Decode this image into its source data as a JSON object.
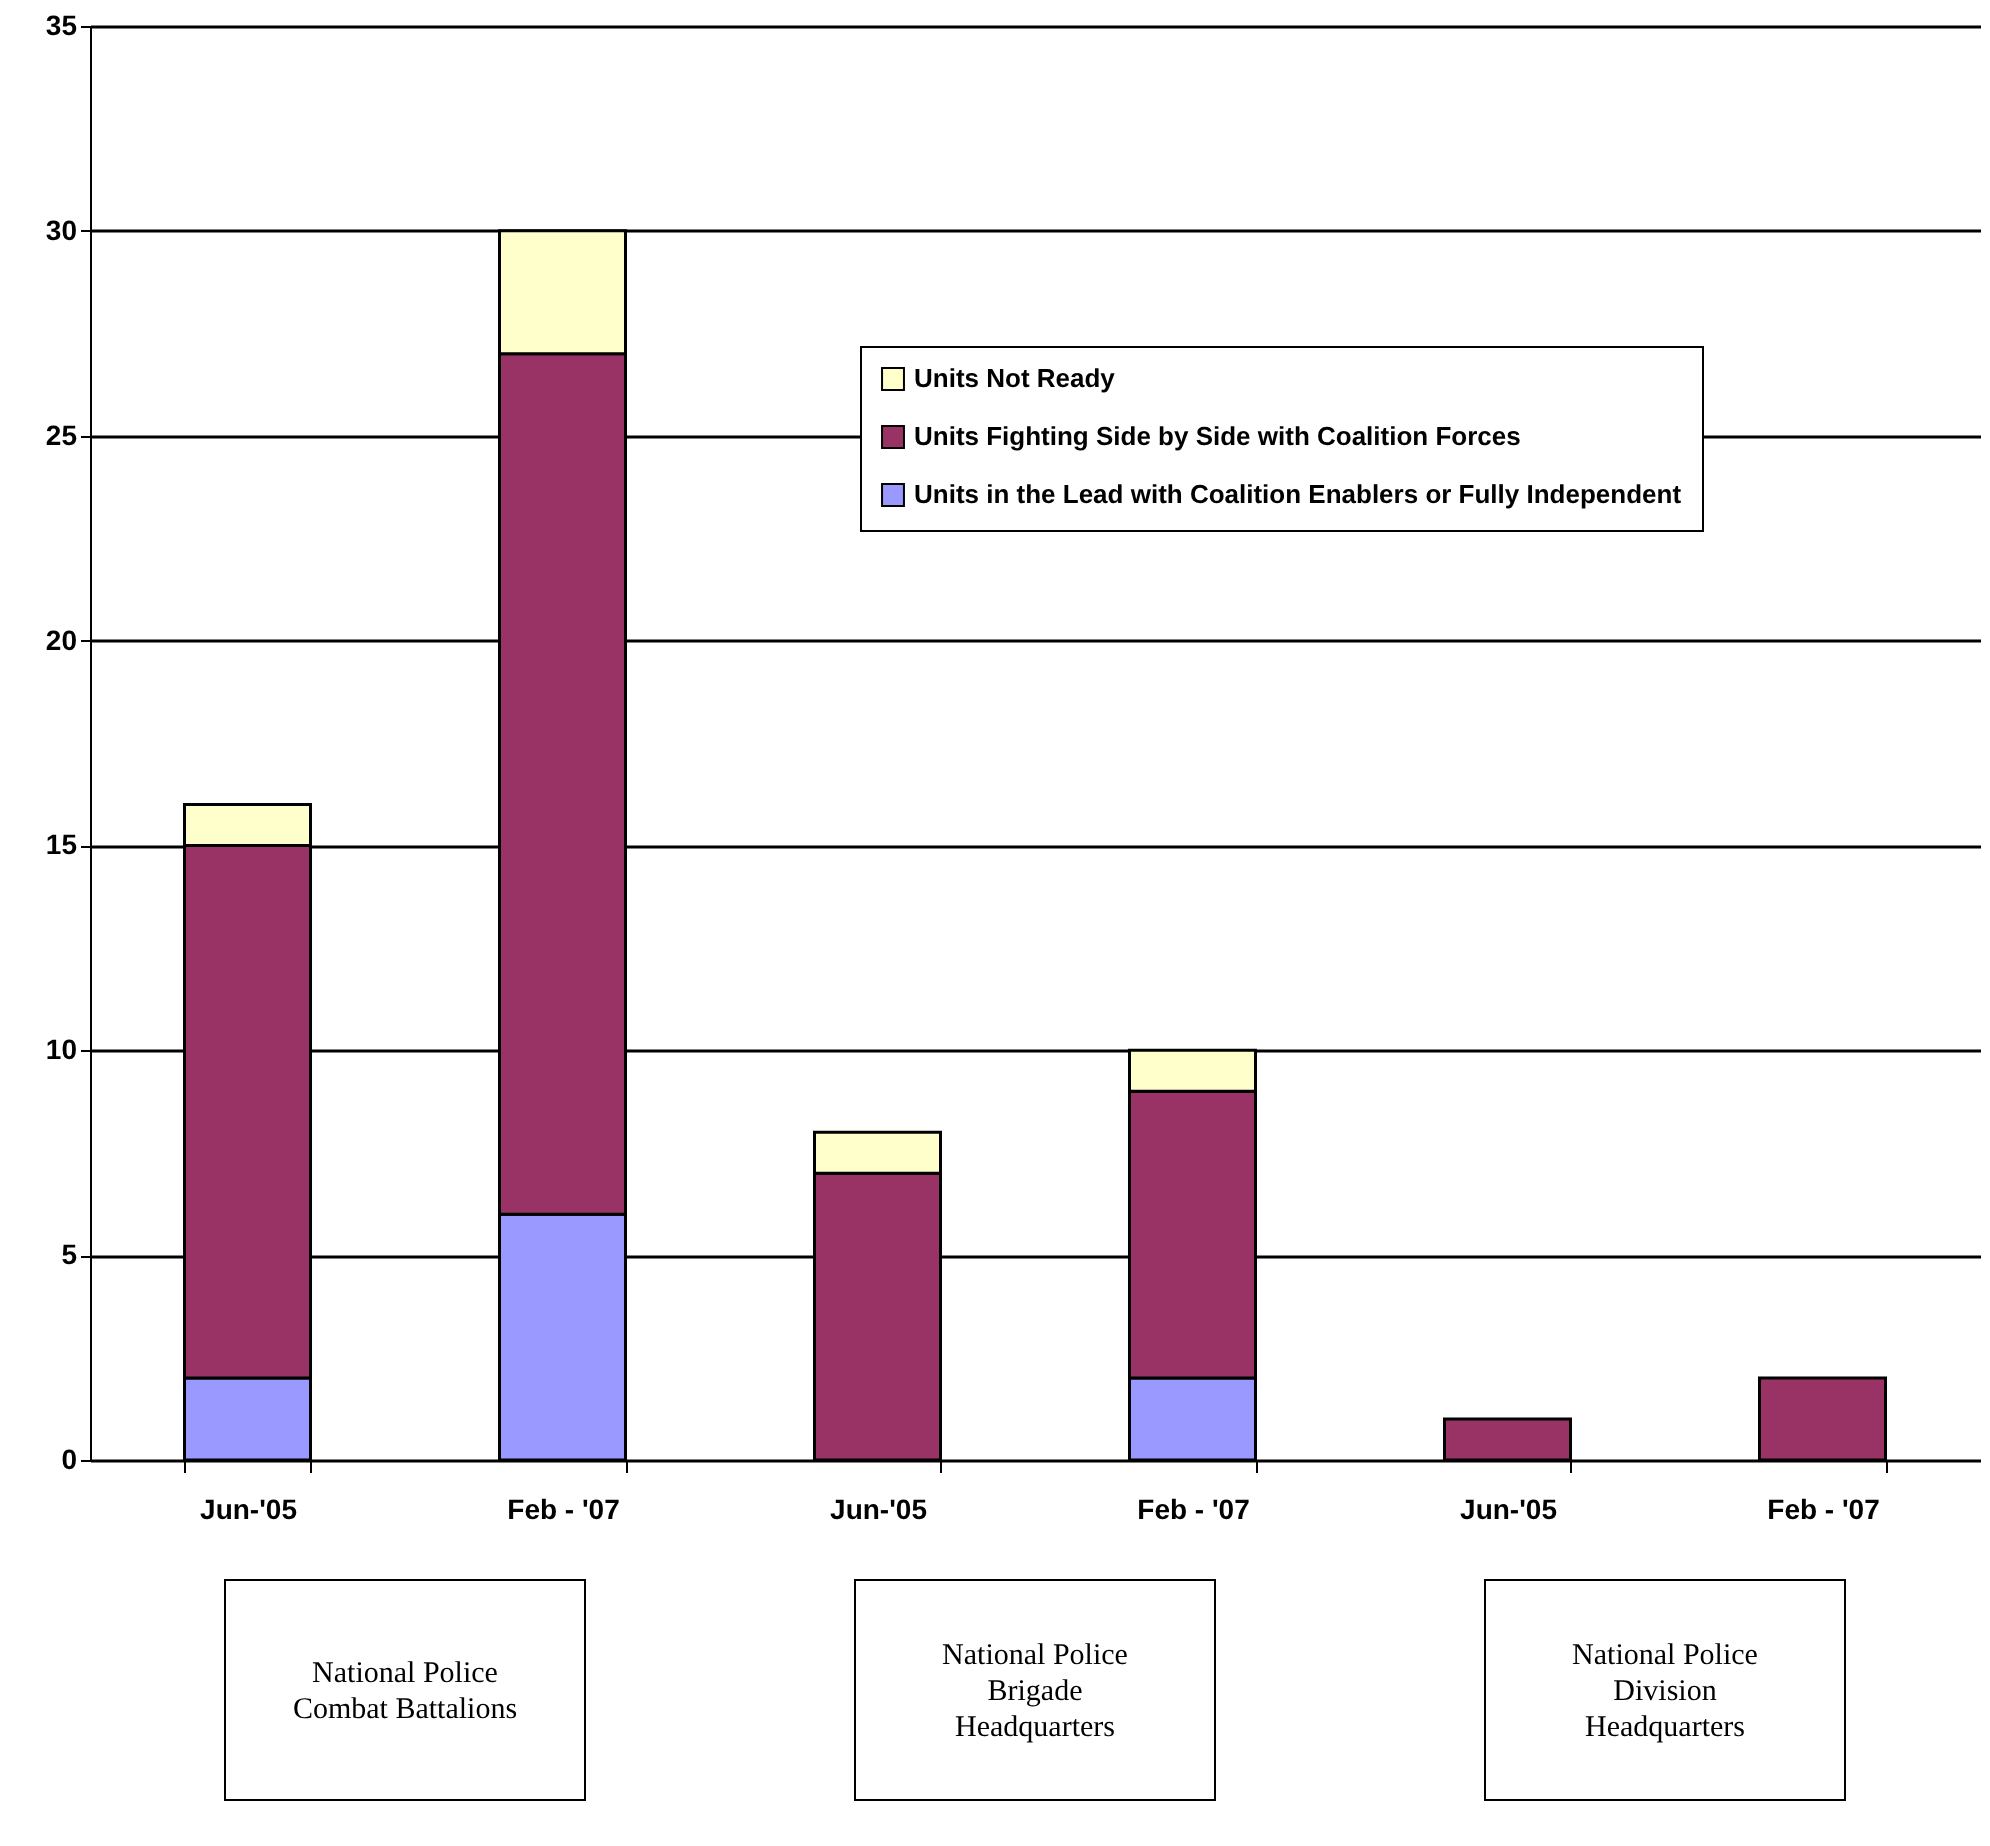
{
  "chart_data": {
    "type": "bar",
    "stacked": true,
    "categories": [
      "Jun-'05",
      "Feb - '07",
      "Jun-'05",
      "Feb - '07",
      "Jun-'05",
      "Feb - '07"
    ],
    "series": [
      {
        "name": "Units in the Lead with Coalition Enablers or Fully Independent",
        "color": "#9999ff",
        "values": [
          2,
          6,
          0,
          2,
          0,
          0
        ]
      },
      {
        "name": "Units Fighting Side by Side with Coalition Forces",
        "color": "#993366",
        "values": [
          13,
          21,
          7,
          7,
          1,
          2
        ]
      },
      {
        "name": "Units Not Ready",
        "color": "#ffffcc",
        "values": [
          1,
          3,
          1,
          1,
          0,
          0
        ]
      }
    ],
    "ylim": [
      0,
      35
    ],
    "yticks": [
      0,
      5,
      10,
      15,
      20,
      25,
      30,
      35
    ],
    "grid": "y",
    "legend": "top right",
    "annotations": [
      "National Police\nCombat Battalions",
      "National Police\nBrigade\nHeadquarters",
      "National Police\nDivision\nHeadquarters"
    ]
  }
}
